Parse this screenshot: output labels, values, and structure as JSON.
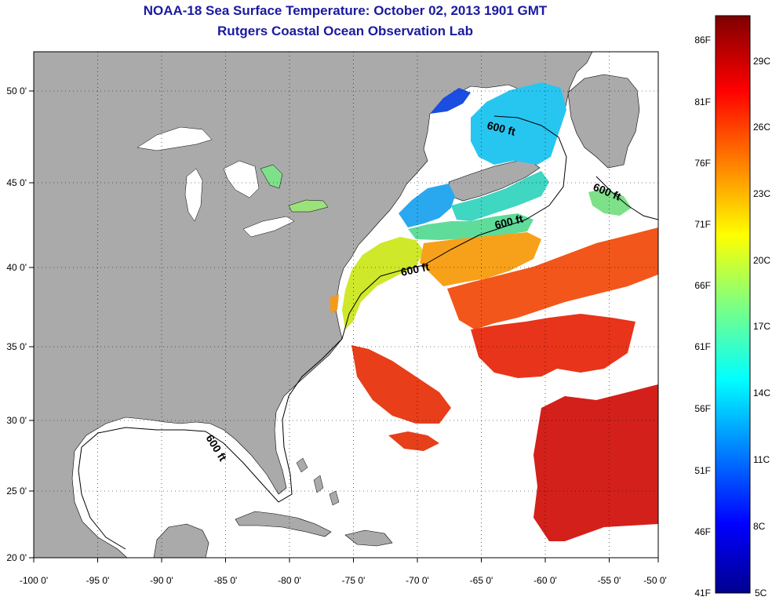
{
  "header": {
    "title": "NOAA-18 Sea Surface Temperature:  October 02, 2013 1901 GMT",
    "subtitle": "Rutgers Coastal Ocean Observation Lab"
  },
  "map": {
    "x_ticks": [
      "-100 0'",
      "-95 0'",
      "-90 0'",
      "-85 0'",
      "-80 0'",
      "-75 0'",
      "-70 0'",
      "-65 0'",
      "-60 0'",
      "-55 0'",
      "-50 0'"
    ],
    "y_ticks": [
      "50 0'",
      "45 0'",
      "40 0'",
      "35 0'",
      "30 0'",
      "25 0'",
      "20 0'"
    ],
    "contour_label": "600 ft",
    "colors": {
      "land": "#aaaaaa",
      "water_nodata": "#ffffff",
      "title": "#1a1aa0"
    }
  },
  "colorbar": {
    "fahrenheit_labels": [
      "86F",
      "81F",
      "76F",
      "71F",
      "66F",
      "61F",
      "56F",
      "51F",
      "46F",
      "41F"
    ],
    "celsius_labels": [
      "29C",
      "26C",
      "23C",
      "20C",
      "17C",
      "14C",
      "11C",
      "8C",
      "5C"
    ]
  }
}
